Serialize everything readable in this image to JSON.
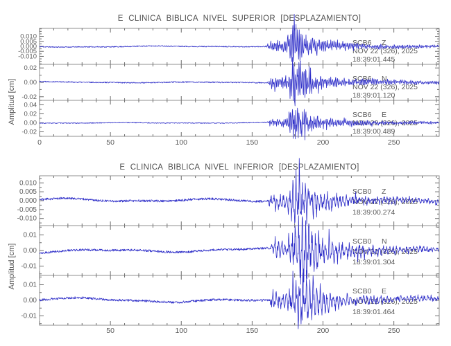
{
  "colors": {
    "background": "#ffffff",
    "trace": "#2e2ec8",
    "frame": "#8f8f8f",
    "tick": "#6a6a6a",
    "text": "#5a5a5a",
    "title": "#4f4f4f"
  },
  "chart_data": [
    {
      "type": "line",
      "title": "E CLINICA BIBLICA NIVEL SUPERIOR [DESPLAZAMIENTO]",
      "ylabel": "Amplitud [cm]",
      "xlim": [
        0,
        282
      ],
      "x_minor_step": 10,
      "x_ticks": [
        {
          "v": 0,
          "label": "0"
        },
        {
          "v": 50,
          "label": "50"
        },
        {
          "v": 100,
          "label": "100"
        },
        {
          "v": 150,
          "label": "150"
        },
        {
          "v": 200,
          "label": "200"
        },
        {
          "v": 250,
          "label": "250"
        }
      ],
      "series": [
        {
          "station": "SCB6",
          "component": "Z",
          "date": "NOV 22 (326), 2025",
          "time": "18:39:01.445",
          "ylim": [
            -0.018,
            0.018
          ],
          "y_minor_step": 0.0025,
          "y_ticks": [
            {
              "v": 0.01,
              "label": "0.010"
            },
            {
              "v": 0.005,
              "label": "0.005"
            },
            {
              "v": 0.0,
              "label": "0.000"
            },
            {
              "v": -0.005,
              "label": "-0.005"
            },
            {
              "v": -0.01,
              "label": "-0.010"
            }
          ],
          "wave": {
            "seed": 11,
            "noise": 0.0005,
            "slow": 0.00045,
            "onset": 159,
            "peak": 181,
            "rise": 5,
            "decay": 8,
            "amp": 0.018,
            "coda": 0.3,
            "codaTau": 70,
            "freq": 0.85
          }
        },
        {
          "station": "SCB6",
          "component": "N",
          "date": "NOV 22 (326), 2025",
          "time": "18:39:01.120",
          "ylim": [
            -0.025,
            0.025
          ],
          "y_minor_step": 0.01,
          "y_ticks": [
            {
              "v": 0.02,
              "label": "0.02"
            },
            {
              "v": 0.0,
              "label": "0.00"
            },
            {
              "v": -0.02,
              "label": "-0.02"
            }
          ],
          "wave": {
            "seed": 22,
            "noise": 0.0008,
            "slow": 0.0006,
            "onset": 160,
            "peak": 182,
            "rise": 5,
            "decay": 8,
            "amp": 0.028,
            "coda": 0.3,
            "codaTau": 70,
            "freq": 0.85
          }
        },
        {
          "station": "SCB6",
          "component": "E",
          "date": "NOV 22 (326), 2025",
          "time": "18:39:00.489",
          "ylim": [
            -0.03,
            0.05
          ],
          "y_minor_step": 0.01,
          "y_ticks": [
            {
              "v": 0.04,
              "label": "0.04"
            },
            {
              "v": 0.02,
              "label": "0.02"
            },
            {
              "v": 0.0,
              "label": "0.00"
            },
            {
              "v": -0.02,
              "label": "-0.02"
            }
          ],
          "wave": {
            "seed": 33,
            "noise": 0.0009,
            "slow": 0.0007,
            "onset": 160,
            "peak": 182,
            "rise": 6,
            "decay": 9,
            "amp": 0.036,
            "coda": 0.3,
            "codaTau": 70,
            "freq": 0.85
          }
        }
      ]
    },
    {
      "type": "line",
      "title": "E CLINICA BIBLICA NIVEL INFERIOR [DESPLAZAMIENTO]",
      "ylabel": "Amplitud [cm]",
      "xlim": [
        0,
        282
      ],
      "x_minor_step": 10,
      "x_ticks": [
        {
          "v": 50,
          "label": "50"
        },
        {
          "v": 100,
          "label": "100"
        },
        {
          "v": 150,
          "label": "150"
        },
        {
          "v": 200,
          "label": "200"
        },
        {
          "v": 250,
          "label": "250"
        }
      ],
      "series": [
        {
          "station": "SCB0",
          "component": "Z",
          "date": "NOV 22 (326), 2025",
          "time": "18:39:00.274",
          "ylim": [
            -0.014,
            0.014
          ],
          "y_minor_step": 0.0025,
          "y_ticks": [
            {
              "v": 0.01,
              "label": "0.010"
            },
            {
              "v": 0.005,
              "label": "0.005"
            },
            {
              "v": 0.0,
              "label": "0.000"
            },
            {
              "v": -0.005,
              "label": "-0.005"
            },
            {
              "v": -0.01,
              "label": "-0.010"
            }
          ],
          "wave": {
            "seed": 44,
            "noise": 0.0006,
            "slow": 0.0008,
            "onset": 160,
            "peak": 182,
            "rise": 5,
            "decay": 10,
            "amp": 0.0155,
            "coda": 0.3,
            "codaTau": 80,
            "freq": 0.45
          }
        },
        {
          "station": "SCB0",
          "component": "N",
          "date": "NOV 22 (326), 2025",
          "time": "18:39:01.304",
          "ylim": [
            -0.016,
            0.016
          ],
          "y_minor_step": 0.005,
          "y_ticks": [
            {
              "v": 0.01,
              "label": "0.01"
            },
            {
              "v": 0.0,
              "label": "0.00"
            },
            {
              "v": -0.01,
              "label": "-0.01"
            }
          ],
          "wave": {
            "seed": 55,
            "noise": 0.0007,
            "slow": 0.0009,
            "onset": 162,
            "peak": 184,
            "rise": 6,
            "decay": 16,
            "amp": 0.017,
            "coda": 0.4,
            "codaTau": 60,
            "freq": 0.42
          }
        },
        {
          "station": "SCB0",
          "component": "E",
          "date": "NOV 22 (326), 2025",
          "time": "18:39:01.464",
          "ylim": [
            -0.016,
            0.016
          ],
          "y_minor_step": 0.005,
          "y_ticks": [
            {
              "v": 0.01,
              "label": "0.01"
            },
            {
              "v": 0.0,
              "label": "0.00"
            },
            {
              "v": -0.01,
              "label": "-0.01"
            }
          ],
          "wave": {
            "seed": 66,
            "noise": 0.0007,
            "slow": 0.0009,
            "onset": 161,
            "peak": 183,
            "rise": 5,
            "decay": 12,
            "amp": 0.019,
            "coda": 0.3,
            "codaTau": 70,
            "freq": 0.42
          }
        }
      ]
    }
  ]
}
